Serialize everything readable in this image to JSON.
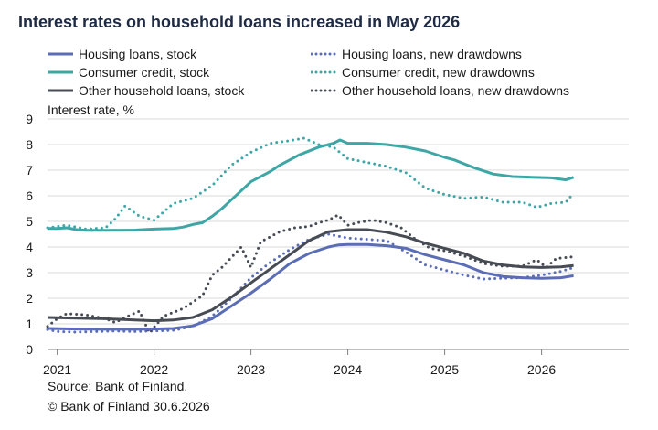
{
  "chart_data": {
    "type": "line",
    "title": "Interest rates on household loans increased in May 2026",
    "ylabel": "Interest rate, %",
    "xlabel": "",
    "xlim": [
      2020.9,
      2026.9
    ],
    "ylim": [
      0,
      9
    ],
    "yticks": [
      0,
      1,
      2,
      3,
      4,
      5,
      6,
      7,
      8,
      9
    ],
    "xticks": [
      {
        "label": "2021",
        "x": 2021
      },
      {
        "label": "2022",
        "x": 2022
      },
      {
        "label": "2023",
        "x": 2023
      },
      {
        "label": "2024",
        "x": 2024
      },
      {
        "label": "2025",
        "x": 2025
      },
      {
        "label": "2026",
        "x": 2026
      }
    ],
    "grid": "horizontal",
    "legend_position": "top",
    "series": [
      {
        "name": "Housing loans, stock",
        "color": "#5b6db5",
        "style": "solid",
        "points": [
          [
            2020.9,
            0.82
          ],
          [
            2021.2,
            0.8
          ],
          [
            2021.5,
            0.79
          ],
          [
            2021.8,
            0.79
          ],
          [
            2022.0,
            0.8
          ],
          [
            2022.2,
            0.82
          ],
          [
            2022.4,
            0.92
          ],
          [
            2022.6,
            1.2
          ],
          [
            2022.8,
            1.7
          ],
          [
            2023.0,
            2.2
          ],
          [
            2023.2,
            2.75
          ],
          [
            2023.4,
            3.35
          ],
          [
            2023.6,
            3.75
          ],
          [
            2023.8,
            4.0
          ],
          [
            2023.9,
            4.08
          ],
          [
            2024.0,
            4.1
          ],
          [
            2024.2,
            4.1
          ],
          [
            2024.4,
            4.05
          ],
          [
            2024.6,
            3.95
          ],
          [
            2024.8,
            3.7
          ],
          [
            2025.0,
            3.5
          ],
          [
            2025.2,
            3.3
          ],
          [
            2025.4,
            3.0
          ],
          [
            2025.6,
            2.85
          ],
          [
            2025.8,
            2.8
          ],
          [
            2026.0,
            2.78
          ],
          [
            2026.2,
            2.8
          ],
          [
            2026.33,
            2.88
          ]
        ]
      },
      {
        "name": "Consumer credit, stock",
        "color": "#3fa6a6",
        "style": "solid",
        "points": [
          [
            2020.9,
            4.72
          ],
          [
            2021.0,
            4.72
          ],
          [
            2021.1,
            4.75
          ],
          [
            2021.2,
            4.68
          ],
          [
            2021.3,
            4.65
          ],
          [
            2021.5,
            4.65
          ],
          [
            2021.8,
            4.66
          ],
          [
            2022.0,
            4.7
          ],
          [
            2022.2,
            4.72
          ],
          [
            2022.3,
            4.78
          ],
          [
            2022.4,
            4.88
          ],
          [
            2022.5,
            4.95
          ],
          [
            2022.6,
            5.2
          ],
          [
            2022.7,
            5.5
          ],
          [
            2022.8,
            5.85
          ],
          [
            2023.0,
            6.55
          ],
          [
            2023.2,
            6.95
          ],
          [
            2023.3,
            7.2
          ],
          [
            2023.5,
            7.6
          ],
          [
            2023.7,
            7.9
          ],
          [
            2023.85,
            8.05
          ],
          [
            2023.92,
            8.18
          ],
          [
            2024.0,
            8.05
          ],
          [
            2024.2,
            8.05
          ],
          [
            2024.4,
            8.0
          ],
          [
            2024.6,
            7.9
          ],
          [
            2024.8,
            7.75
          ],
          [
            2025.0,
            7.5
          ],
          [
            2025.1,
            7.4
          ],
          [
            2025.3,
            7.1
          ],
          [
            2025.5,
            6.85
          ],
          [
            2025.7,
            6.75
          ],
          [
            2025.9,
            6.72
          ],
          [
            2026.1,
            6.7
          ],
          [
            2026.25,
            6.62
          ],
          [
            2026.33,
            6.72
          ]
        ]
      },
      {
        "name": "Other household loans, stock",
        "color": "#474c54",
        "style": "solid",
        "points": [
          [
            2020.9,
            1.25
          ],
          [
            2021.2,
            1.22
          ],
          [
            2021.5,
            1.2
          ],
          [
            2021.8,
            1.15
          ],
          [
            2022.0,
            1.12
          ],
          [
            2022.2,
            1.15
          ],
          [
            2022.4,
            1.25
          ],
          [
            2022.6,
            1.55
          ],
          [
            2022.8,
            2.05
          ],
          [
            2023.0,
            2.6
          ],
          [
            2023.2,
            3.15
          ],
          [
            2023.4,
            3.7
          ],
          [
            2023.6,
            4.25
          ],
          [
            2023.8,
            4.6
          ],
          [
            2024.0,
            4.68
          ],
          [
            2024.2,
            4.68
          ],
          [
            2024.4,
            4.58
          ],
          [
            2024.6,
            4.4
          ],
          [
            2024.8,
            4.15
          ],
          [
            2025.0,
            3.95
          ],
          [
            2025.2,
            3.75
          ],
          [
            2025.4,
            3.45
          ],
          [
            2025.6,
            3.3
          ],
          [
            2025.8,
            3.22
          ],
          [
            2026.0,
            3.2
          ],
          [
            2026.2,
            3.22
          ],
          [
            2026.33,
            3.28
          ]
        ]
      },
      {
        "name": "Housing loans, new drawdowns",
        "color": "#5b6db5",
        "style": "dotted",
        "points": [
          [
            2020.9,
            0.78
          ],
          [
            2021.0,
            0.7
          ],
          [
            2021.2,
            0.68
          ],
          [
            2021.4,
            0.7
          ],
          [
            2021.6,
            0.72
          ],
          [
            2021.8,
            0.7
          ],
          [
            2022.0,
            0.72
          ],
          [
            2022.2,
            0.75
          ],
          [
            2022.4,
            0.9
          ],
          [
            2022.6,
            1.3
          ],
          [
            2022.8,
            2.0
          ],
          [
            2023.0,
            2.8
          ],
          [
            2023.2,
            3.4
          ],
          [
            2023.4,
            3.9
          ],
          [
            2023.6,
            4.3
          ],
          [
            2023.8,
            4.5
          ],
          [
            2024.0,
            4.35
          ],
          [
            2024.2,
            4.3
          ],
          [
            2024.4,
            4.25
          ],
          [
            2024.6,
            3.8
          ],
          [
            2024.8,
            3.3
          ],
          [
            2025.0,
            3.1
          ],
          [
            2025.2,
            2.9
          ],
          [
            2025.4,
            2.75
          ],
          [
            2025.6,
            2.78
          ],
          [
            2025.8,
            2.8
          ],
          [
            2026.0,
            2.9
          ],
          [
            2026.2,
            3.05
          ],
          [
            2026.33,
            3.2
          ]
        ]
      },
      {
        "name": "Consumer credit, new drawdowns",
        "color": "#3fa6a6",
        "style": "dotted",
        "points": [
          [
            2020.9,
            4.75
          ],
          [
            2021.1,
            4.85
          ],
          [
            2021.3,
            4.7
          ],
          [
            2021.5,
            4.75
          ],
          [
            2021.6,
            5.1
          ],
          [
            2021.7,
            5.6
          ],
          [
            2021.85,
            5.2
          ],
          [
            2022.0,
            5.05
          ],
          [
            2022.2,
            5.7
          ],
          [
            2022.4,
            5.9
          ],
          [
            2022.6,
            6.4
          ],
          [
            2022.8,
            7.2
          ],
          [
            2023.0,
            7.7
          ],
          [
            2023.2,
            8.05
          ],
          [
            2023.4,
            8.15
          ],
          [
            2023.55,
            8.25
          ],
          [
            2023.7,
            8.0
          ],
          [
            2023.85,
            7.9
          ],
          [
            2024.0,
            7.45
          ],
          [
            2024.2,
            7.3
          ],
          [
            2024.4,
            7.15
          ],
          [
            2024.6,
            6.9
          ],
          [
            2024.8,
            6.3
          ],
          [
            2025.0,
            6.05
          ],
          [
            2025.2,
            5.9
          ],
          [
            2025.4,
            5.95
          ],
          [
            2025.6,
            5.75
          ],
          [
            2025.8,
            5.75
          ],
          [
            2025.95,
            5.55
          ],
          [
            2026.1,
            5.7
          ],
          [
            2026.25,
            5.75
          ],
          [
            2026.33,
            6.1
          ]
        ]
      },
      {
        "name": "Other household loans, new drawdowns",
        "color": "#474c54",
        "style": "dotted",
        "points": [
          [
            2020.9,
            0.9
          ],
          [
            2021.0,
            1.2
          ],
          [
            2021.1,
            1.4
          ],
          [
            2021.3,
            1.35
          ],
          [
            2021.5,
            1.2
          ],
          [
            2021.6,
            1.05
          ],
          [
            2021.7,
            1.25
          ],
          [
            2021.85,
            1.5
          ],
          [
            2021.95,
            0.65
          ],
          [
            2022.1,
            1.3
          ],
          [
            2022.3,
            1.6
          ],
          [
            2022.5,
            2.1
          ],
          [
            2022.6,
            2.9
          ],
          [
            2022.7,
            3.2
          ],
          [
            2022.8,
            3.6
          ],
          [
            2022.9,
            4.0
          ],
          [
            2023.0,
            3.2
          ],
          [
            2023.1,
            4.2
          ],
          [
            2023.3,
            4.6
          ],
          [
            2023.45,
            4.75
          ],
          [
            2023.6,
            4.8
          ],
          [
            2023.7,
            4.95
          ],
          [
            2023.8,
            5.05
          ],
          [
            2023.9,
            5.25
          ],
          [
            2024.0,
            4.85
          ],
          [
            2024.1,
            4.95
          ],
          [
            2024.25,
            5.05
          ],
          [
            2024.4,
            4.95
          ],
          [
            2024.55,
            4.75
          ],
          [
            2024.7,
            4.3
          ],
          [
            2024.85,
            3.95
          ],
          [
            2025.0,
            3.85
          ],
          [
            2025.2,
            3.65
          ],
          [
            2025.4,
            3.35
          ],
          [
            2025.6,
            3.25
          ],
          [
            2025.8,
            3.25
          ],
          [
            2025.95,
            3.5
          ],
          [
            2026.05,
            3.2
          ],
          [
            2026.15,
            3.55
          ],
          [
            2026.33,
            3.62
          ]
        ]
      }
    ]
  },
  "footer": {
    "source": "Source: Bank of Finland.",
    "copyright": "© Bank of Finland 30.6.2026"
  }
}
